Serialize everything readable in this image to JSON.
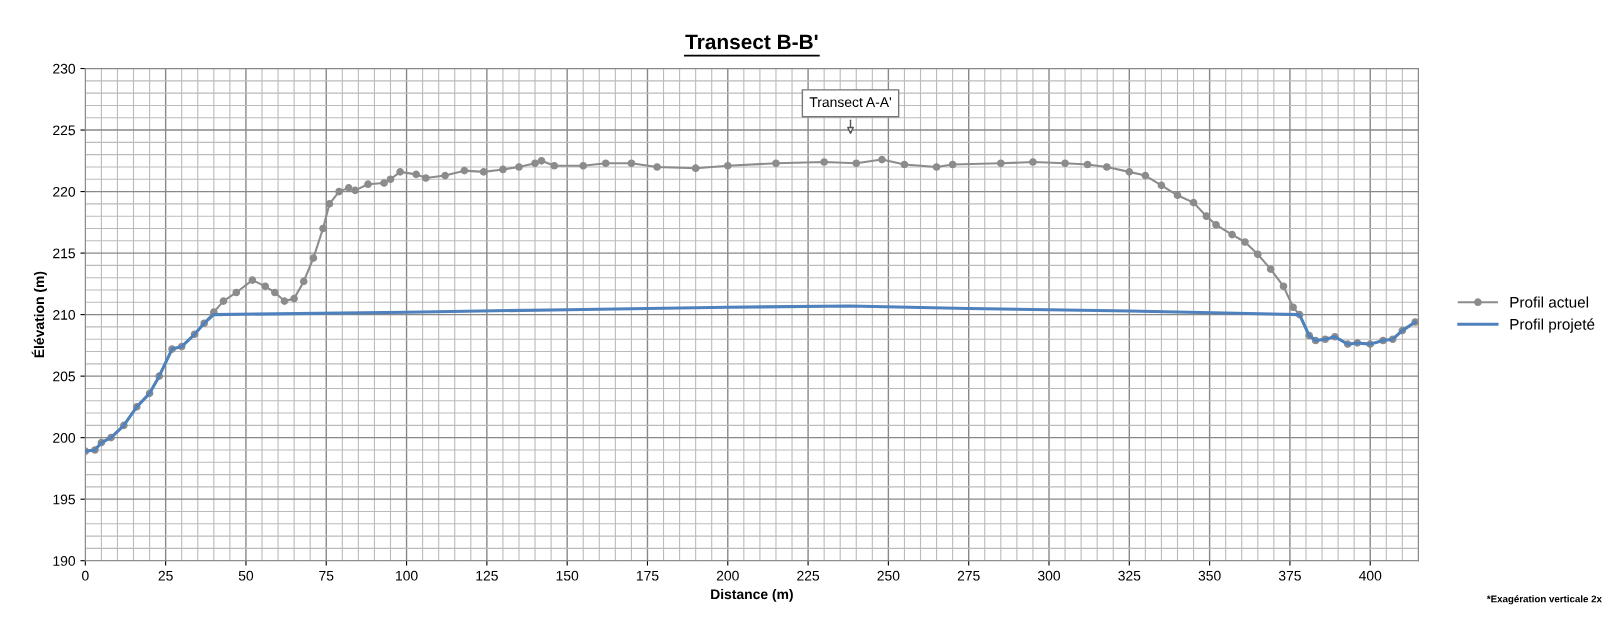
{
  "chart_data": {
    "type": "line",
    "title": "Transect B-B'",
    "xlabel": "Distance (m)",
    "ylabel": "Élévation (m)",
    "series": [
      {
        "name": "Profil actuel",
        "color": "#8c8c8c",
        "marker": "circle",
        "x": [
          0,
          3,
          5,
          8,
          12,
          16,
          20,
          23,
          27,
          30,
          34,
          37,
          40,
          43,
          47,
          52,
          56,
          59,
          62,
          65,
          68,
          71,
          74,
          76,
          79,
          82,
          84,
          88,
          93,
          95,
          98,
          103,
          106,
          112,
          118,
          124,
          130,
          135,
          140,
          142,
          146,
          155,
          162,
          170,
          178,
          190,
          200,
          215,
          230,
          240,
          248,
          255,
          265,
          270,
          285,
          295,
          305,
          312,
          318,
          325,
          330,
          335,
          340,
          345,
          349,
          352,
          357,
          361,
          365,
          369,
          373,
          376,
          378,
          381,
          383,
          386,
          389,
          393,
          396,
          400,
          404,
          407,
          410,
          414
        ],
        "values": [
          198.9,
          199,
          199.6,
          200,
          201,
          202.5,
          203.6,
          205,
          207.2,
          207.4,
          208.4,
          209.3,
          210.2,
          211.1,
          211.8,
          212.8,
          212.3,
          211.8,
          211.1,
          211.3,
          212.7,
          214.6,
          217,
          219,
          220,
          220.3,
          220.1,
          220.6,
          220.7,
          221,
          221.6,
          221.4,
          221.1,
          221.3,
          221.7,
          221.6,
          221.8,
          222,
          222.3,
          222.5,
          222.1,
          222.1,
          222.3,
          222.3,
          222,
          221.9,
          222.1,
          222.3,
          222.4,
          222.3,
          222.6,
          222.2,
          222,
          222.2,
          222.3,
          222.4,
          222.3,
          222.2,
          222,
          221.6,
          221.3,
          220.5,
          219.7,
          219.1,
          218,
          217.3,
          216.5,
          215.9,
          214.9,
          213.7,
          212.3,
          210.6,
          210,
          208.3,
          207.9,
          208,
          208.2,
          207.6,
          207.7,
          207.6,
          207.9,
          208,
          208.7,
          209.4
        ]
      },
      {
        "name": "Profil projeté",
        "color": "#4f81bd",
        "marker": "none",
        "x": [
          0,
          3,
          5,
          8,
          12,
          16,
          20,
          23,
          27,
          30,
          34,
          37,
          40,
          100,
          150,
          200,
          238,
          275,
          325,
          378,
          381,
          383,
          386,
          389,
          393,
          396,
          400,
          404,
          407,
          410,
          414
        ],
        "values": [
          198.9,
          199,
          199.6,
          200,
          201,
          202.5,
          203.6,
          205,
          207.2,
          207.4,
          208.4,
          209.3,
          210.0,
          210.2,
          210.4,
          210.6,
          210.7,
          210.5,
          210.3,
          210.0,
          208.3,
          207.9,
          208,
          208.2,
          207.6,
          207.7,
          207.6,
          207.9,
          208,
          208.7,
          209.4
        ]
      }
    ],
    "xlim": [
      0,
      415
    ],
    "xticks": [
      0,
      25,
      50,
      75,
      100,
      125,
      150,
      175,
      200,
      225,
      250,
      275,
      300,
      325,
      350,
      375,
      400
    ],
    "ylim": [
      190,
      230
    ],
    "yticks": [
      190,
      195,
      200,
      205,
      210,
      215,
      220,
      225,
      230
    ],
    "grid": true,
    "legend": "right",
    "line_style": "solid",
    "annotations": [
      "Transect A-A'",
      "*Exagération verticale 2x"
    ]
  }
}
